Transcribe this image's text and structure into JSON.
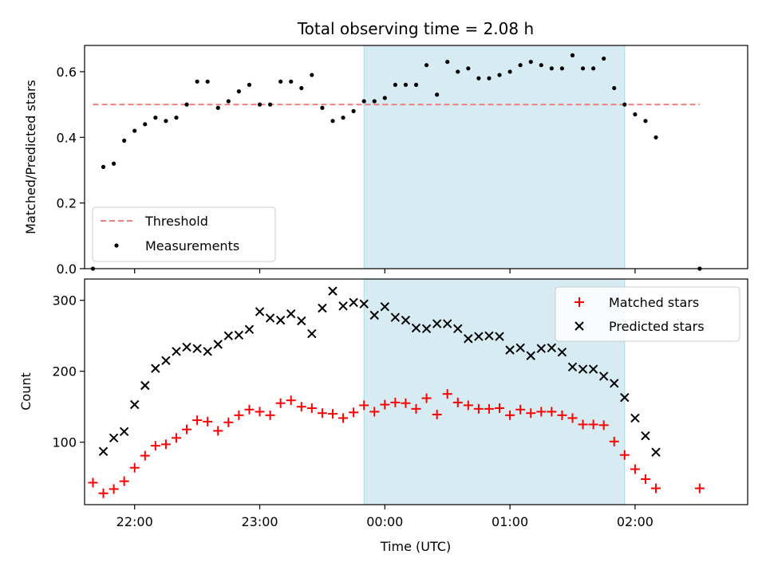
{
  "chart_data": [
    {
      "type": "scatter",
      "title": "Total observing time = 2.08 h",
      "xlabel": "",
      "ylabel": "Matched/Predicted stars",
      "ylim": [
        0,
        0.68
      ],
      "yticks": [
        "0.0",
        "0.2",
        "0.4",
        "0.6"
      ],
      "xticks": [
        "22:00",
        "23:00",
        "00:00",
        "01:00",
        "02:00"
      ],
      "xlim": [
        "21:36",
        "02:54"
      ],
      "shaded_region": {
        "start": "23:50",
        "end": "01:55",
        "color": "#add8e6"
      },
      "legend_position": "lower-left",
      "threshold": {
        "name": "Threshold",
        "value": 0.5,
        "x_start": "21:40",
        "x_end": "02:31",
        "color": "#f08080"
      },
      "series": [
        {
          "name": "Measurements",
          "marker": "dot",
          "color": "#000000",
          "x": [
            "21:40",
            "21:45",
            "21:50",
            "21:55",
            "22:00",
            "22:05",
            "22:10",
            "22:15",
            "22:20",
            "22:25",
            "22:30",
            "22:35",
            "22:40",
            "22:45",
            "22:50",
            "22:55",
            "23:00",
            "23:05",
            "23:10",
            "23:15",
            "23:20",
            "23:25",
            "23:30",
            "23:35",
            "23:40",
            "23:45",
            "23:50",
            "23:55",
            "00:00",
            "00:05",
            "00:10",
            "00:15",
            "00:20",
            "00:25",
            "00:30",
            "00:35",
            "00:40",
            "00:45",
            "00:50",
            "00:55",
            "01:00",
            "01:05",
            "01:10",
            "01:15",
            "01:20",
            "01:25",
            "01:30",
            "01:35",
            "01:40",
            "01:45",
            "01:50",
            "01:55",
            "02:00",
            "02:05",
            "02:10",
            "02:31"
          ],
          "y": [
            0.0,
            0.31,
            0.32,
            0.39,
            0.42,
            0.44,
            0.46,
            0.45,
            0.46,
            0.5,
            0.57,
            0.57,
            0.49,
            0.51,
            0.54,
            0.56,
            0.5,
            0.5,
            0.57,
            0.57,
            0.55,
            0.59,
            0.49,
            0.45,
            0.46,
            0.48,
            0.51,
            0.51,
            0.52,
            0.56,
            0.56,
            0.56,
            0.62,
            0.53,
            0.63,
            0.6,
            0.61,
            0.58,
            0.58,
            0.59,
            0.6,
            0.62,
            0.63,
            0.62,
            0.61,
            0.61,
            0.65,
            0.61,
            0.61,
            0.64,
            0.55,
            0.5,
            0.47,
            0.45,
            0.4,
            0.0
          ]
        }
      ]
    },
    {
      "type": "scatter",
      "title": "",
      "xlabel": "Time (UTC)",
      "ylabel": "Count",
      "ylim": [
        12,
        330
      ],
      "yticks": [
        "100",
        "200",
        "300"
      ],
      "xticks": [
        "22:00",
        "23:00",
        "00:00",
        "01:00",
        "02:00"
      ],
      "xlim": [
        "21:36",
        "02:54"
      ],
      "shaded_region": {
        "start": "23:50",
        "end": "01:55",
        "color": "#add8e6"
      },
      "legend_position": "upper-right",
      "series": [
        {
          "name": "Matched stars",
          "marker": "plus",
          "color": "#ff0000",
          "x": [
            "21:40",
            "21:45",
            "21:50",
            "21:55",
            "22:00",
            "22:05",
            "22:10",
            "22:15",
            "22:20",
            "22:25",
            "22:30",
            "22:35",
            "22:40",
            "22:45",
            "22:50",
            "22:55",
            "23:00",
            "23:05",
            "23:10",
            "23:15",
            "23:20",
            "23:25",
            "23:30",
            "23:35",
            "23:40",
            "23:45",
            "23:50",
            "23:55",
            "00:00",
            "00:05",
            "00:10",
            "00:15",
            "00:20",
            "00:25",
            "00:30",
            "00:35",
            "00:40",
            "00:45",
            "00:50",
            "00:55",
            "01:00",
            "01:05",
            "01:10",
            "01:15",
            "01:20",
            "01:25",
            "01:30",
            "01:35",
            "01:40",
            "01:45",
            "01:50",
            "01:55",
            "02:00",
            "02:05",
            "02:10",
            "02:31"
          ],
          "y": [
            43,
            28,
            34,
            45,
            64,
            81,
            95,
            97,
            106,
            118,
            131,
            129,
            116,
            128,
            138,
            146,
            143,
            138,
            155,
            159,
            150,
            148,
            141,
            140,
            134,
            142,
            152,
            143,
            153,
            156,
            155,
            147,
            162,
            139,
            168,
            156,
            152,
            147,
            147,
            148,
            138,
            146,
            141,
            143,
            143,
            138,
            134,
            125,
            125,
            124,
            101,
            82,
            62,
            48,
            35,
            35
          ]
        },
        {
          "name": "Predicted stars",
          "marker": "x",
          "color": "#000000",
          "x": [
            "21:45",
            "21:50",
            "21:55",
            "22:00",
            "22:05",
            "22:10",
            "22:15",
            "22:20",
            "22:25",
            "22:30",
            "22:35",
            "22:40",
            "22:45",
            "22:50",
            "22:55",
            "23:00",
            "23:05",
            "23:10",
            "23:15",
            "23:20",
            "23:25",
            "23:30",
            "23:35",
            "23:40",
            "23:45",
            "23:50",
            "23:55",
            "00:00",
            "00:05",
            "00:10",
            "00:15",
            "00:20",
            "00:25",
            "00:30",
            "00:35",
            "00:40",
            "00:45",
            "00:50",
            "00:55",
            "01:00",
            "01:05",
            "01:10",
            "01:15",
            "01:20",
            "01:25",
            "01:30",
            "01:35",
            "01:40",
            "01:45",
            "01:50",
            "01:55",
            "02:00",
            "02:05",
            "02:10"
          ],
          "y": [
            87,
            106,
            115,
            153,
            180,
            204,
            215,
            228,
            234,
            232,
            228,
            238,
            250,
            251,
            259,
            284,
            275,
            272,
            281,
            271,
            253,
            289,
            313,
            292,
            297,
            295,
            279,
            291,
            276,
            272,
            261,
            260,
            267,
            267,
            260,
            246,
            249,
            250,
            249,
            230,
            233,
            222,
            232,
            233,
            227,
            206,
            203,
            203,
            193,
            183,
            163,
            134,
            109,
            86
          ]
        }
      ]
    }
  ]
}
